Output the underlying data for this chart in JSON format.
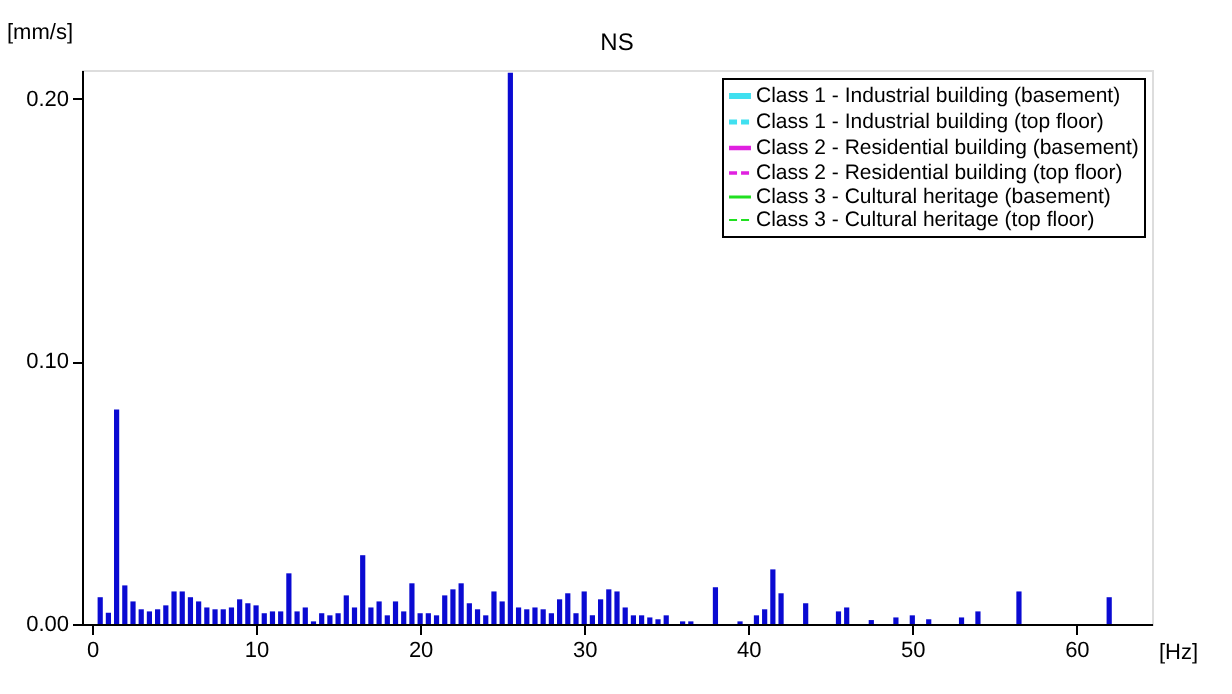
{
  "chart_data": {
    "type": "bar",
    "title": "NS",
    "xlabel": "[Hz]",
    "ylabel": "[mm/s]",
    "xlim": [
      0,
      64
    ],
    "xticks": [
      0,
      10,
      20,
      30,
      40,
      50,
      60
    ],
    "ylim": [
      0,
      0.211
    ],
    "yticks": [
      {
        "value": 0,
        "label": "0.00"
      },
      {
        "value": 0.1,
        "label": "0.10"
      },
      {
        "value": 0.2,
        "label": "0.20"
      }
    ],
    "grid": false,
    "legend": "top right",
    "x": [
      0.5,
      1.0,
      1.5,
      2.0,
      2.5,
      3.0,
      3.5,
      4.0,
      4.5,
      5.0,
      5.5,
      6.0,
      6.5,
      7.0,
      7.5,
      8.0,
      8.5,
      9.0,
      9.5,
      10.0,
      10.5,
      11.0,
      11.5,
      12.0,
      12.5,
      13.0,
      13.5,
      14.0,
      14.5,
      15.0,
      15.5,
      16.0,
      16.5,
      17.0,
      17.5,
      18.0,
      18.5,
      19.0,
      19.5,
      20.0,
      20.5,
      21.0,
      21.5,
      22.0,
      22.5,
      23.0,
      23.5,
      24.0,
      24.5,
      25.0,
      25.5,
      26.0,
      26.5,
      27.0,
      27.5,
      28.0,
      28.5,
      29.0,
      29.5,
      30.0,
      30.5,
      31.0,
      31.5,
      32.0,
      32.5,
      33.0,
      33.5,
      34.0,
      34.5,
      35.0,
      36.0,
      36.5,
      38.0,
      39.5,
      40.5,
      41.0,
      41.5,
      42.0,
      43.5,
      45.5,
      46.0,
      47.5,
      49.0,
      50.0,
      51.0,
      53.0,
      54.0,
      56.5,
      62.0
    ],
    "series": [
      {
        "color": "#0a0ad2",
        "values": [
          0.0102,
          0.0043,
          0.0817,
          0.0147,
          0.0086,
          0.0056,
          0.0048,
          0.0056,
          0.0071,
          0.0124,
          0.0124,
          0.0102,
          0.0086,
          0.0063,
          0.0056,
          0.0056,
          0.0063,
          0.0094,
          0.0079,
          0.0071,
          0.0041,
          0.0048,
          0.0048,
          0.0193,
          0.0048,
          0.0063,
          0.001,
          0.0041,
          0.0033,
          0.0041,
          0.0109,
          0.0063,
          0.0262,
          0.0063,
          0.0086,
          0.0033,
          0.0086,
          0.0048,
          0.0155,
          0.0041,
          0.0041,
          0.0033,
          0.0109,
          0.0132,
          0.0155,
          0.0079,
          0.0056,
          0.0033,
          0.0124,
          0.0086,
          0.21,
          0.0063,
          0.0056,
          0.0063,
          0.0056,
          0.0041,
          0.0094,
          0.0117,
          0.0041,
          0.0124,
          0.0033,
          0.0094,
          0.0132,
          0.0124,
          0.0063,
          0.0033,
          0.0033,
          0.0025,
          0.0018,
          0.0033,
          0.001,
          0.001,
          0.014,
          0.001,
          0.0033,
          0.0056,
          0.0208,
          0.0117,
          0.0079,
          0.0048,
          0.0063,
          0.0015,
          0.0025,
          0.0033,
          0.0018,
          0.0025,
          0.0048,
          0.0124,
          0.0102
        ]
      },
      {
        "type": "line",
        "name": "Class 1 - Industrial building (basement)",
        "color": "#40e0f0",
        "line_style": "solid",
        "values": [
          null,
          null,
          null,
          null,
          null,
          null,
          null,
          null,
          null,
          null,
          null,
          null,
          null,
          null,
          null,
          null,
          null,
          null,
          null,
          null,
          null,
          null,
          null,
          null,
          null,
          null,
          null,
          null,
          null,
          null,
          null,
          null,
          null,
          null,
          null,
          null,
          null,
          null,
          null,
          null,
          null,
          null,
          null,
          null,
          null,
          null,
          null,
          null,
          null,
          null,
          null,
          null,
          null,
          null,
          null,
          null,
          null,
          null,
          null,
          null,
          null,
          null,
          null,
          null,
          null,
          null,
          null,
          null,
          null,
          null,
          null,
          null,
          null,
          null,
          null,
          null,
          null,
          null,
          null,
          null,
          null,
          null,
          null,
          null,
          null,
          null,
          null,
          null,
          null
        ]
      },
      {
        "type": "line",
        "name": "Class 1 - Industrial building (top floor)",
        "color": "#40e0f0",
        "line_style": "dashed",
        "values": [
          null,
          null,
          null,
          null,
          null,
          null,
          null,
          null,
          null,
          null,
          null,
          null,
          null,
          null,
          null,
          null,
          null,
          null,
          null,
          null,
          null,
          null,
          null,
          null,
          null,
          null,
          null,
          null,
          null,
          null,
          null,
          null,
          null,
          null,
          null,
          null,
          null,
          null,
          null,
          null,
          null,
          null,
          null,
          null,
          null,
          null,
          null,
          null,
          null,
          null,
          null,
          null,
          null,
          null,
          null,
          null,
          null,
          null,
          null,
          null,
          null,
          null,
          null,
          null,
          null,
          null,
          null,
          null,
          null,
          null,
          null,
          null,
          null,
          null,
          null,
          null,
          null,
          null,
          null,
          null,
          null,
          null,
          null,
          null,
          null,
          null,
          null,
          null,
          null
        ]
      },
      {
        "type": "line",
        "name": "Class 2 - Residential building (basement)",
        "color": "#e020e0",
        "line_style": "solid",
        "values": [
          null,
          null,
          null,
          null,
          null,
          null,
          null,
          null,
          null,
          null,
          null,
          null,
          null,
          null,
          null,
          null,
          null,
          null,
          null,
          null,
          null,
          null,
          null,
          null,
          null,
          null,
          null,
          null,
          null,
          null,
          null,
          null,
          null,
          null,
          null,
          null,
          null,
          null,
          null,
          null,
          null,
          null,
          null,
          null,
          null,
          null,
          null,
          null,
          null,
          null,
          null,
          null,
          null,
          null,
          null,
          null,
          null,
          null,
          null,
          null,
          null,
          null,
          null,
          null,
          null,
          null,
          null,
          null,
          null,
          null,
          null,
          null,
          null,
          null,
          null,
          null,
          null,
          null,
          null,
          null,
          null,
          null,
          null,
          null,
          null,
          null,
          null,
          null,
          null
        ]
      },
      {
        "type": "line",
        "name": "Class 2 - Residential building (top floor)",
        "color": "#e020e0",
        "line_style": "dashed",
        "values": [
          null,
          null,
          null,
          null,
          null,
          null,
          null,
          null,
          null,
          null,
          null,
          null,
          null,
          null,
          null,
          null,
          null,
          null,
          null,
          null,
          null,
          null,
          null,
          null,
          null,
          null,
          null,
          null,
          null,
          null,
          null,
          null,
          null,
          null,
          null,
          null,
          null,
          null,
          null,
          null,
          null,
          null,
          null,
          null,
          null,
          null,
          null,
          null,
          null,
          null,
          null,
          null,
          null,
          null,
          null,
          null,
          null,
          null,
          null,
          null,
          null,
          null,
          null,
          null,
          null,
          null,
          null,
          null,
          null,
          null,
          null,
          null,
          null,
          null,
          null,
          null,
          null,
          null,
          null,
          null,
          null,
          null,
          null,
          null,
          null,
          null,
          null,
          null,
          null
        ]
      },
      {
        "type": "line",
        "name": "Class 3 - Cultural heritage (basement)",
        "color": "#20e020",
        "line_style": "solid",
        "values": [
          null,
          null,
          null,
          null,
          null,
          null,
          null,
          null,
          null,
          null,
          null,
          null,
          null,
          null,
          null,
          null,
          null,
          null,
          null,
          null,
          null,
          null,
          null,
          null,
          null,
          null,
          null,
          null,
          null,
          null,
          null,
          null,
          null,
          null,
          null,
          null,
          null,
          null,
          null,
          null,
          null,
          null,
          null,
          null,
          null,
          null,
          null,
          null,
          null,
          null,
          null,
          null,
          null,
          null,
          null,
          null,
          null,
          null,
          null,
          null,
          null,
          null,
          null,
          null,
          null,
          null,
          null,
          null,
          null,
          null,
          null,
          null,
          null,
          null,
          null,
          null,
          null,
          null,
          null,
          null,
          null,
          null,
          null,
          null,
          null,
          null,
          null,
          null,
          null
        ]
      },
      {
        "type": "line",
        "name": "Class 3 - Cultural heritage (top floor)",
        "color": "#20e020",
        "line_style": "dashed",
        "values": [
          null,
          null,
          null,
          null,
          null,
          null,
          null,
          null,
          null,
          null,
          null,
          null,
          null,
          null,
          null,
          null,
          null,
          null,
          null,
          null,
          null,
          null,
          null,
          null,
          null,
          null,
          null,
          null,
          null,
          null,
          null,
          null,
          null,
          null,
          null,
          null,
          null,
          null,
          null,
          null,
          null,
          null,
          null,
          null,
          null,
          null,
          null,
          null,
          null,
          null,
          null,
          null,
          null,
          null,
          null,
          null,
          null,
          null,
          null,
          null,
          null,
          null,
          null,
          null,
          null,
          null,
          null,
          null,
          null,
          null,
          null,
          null,
          null,
          null,
          null,
          null,
          null,
          null,
          null,
          null,
          null,
          null,
          null,
          null,
          null,
          null,
          null,
          null,
          null
        ]
      }
    ]
  }
}
